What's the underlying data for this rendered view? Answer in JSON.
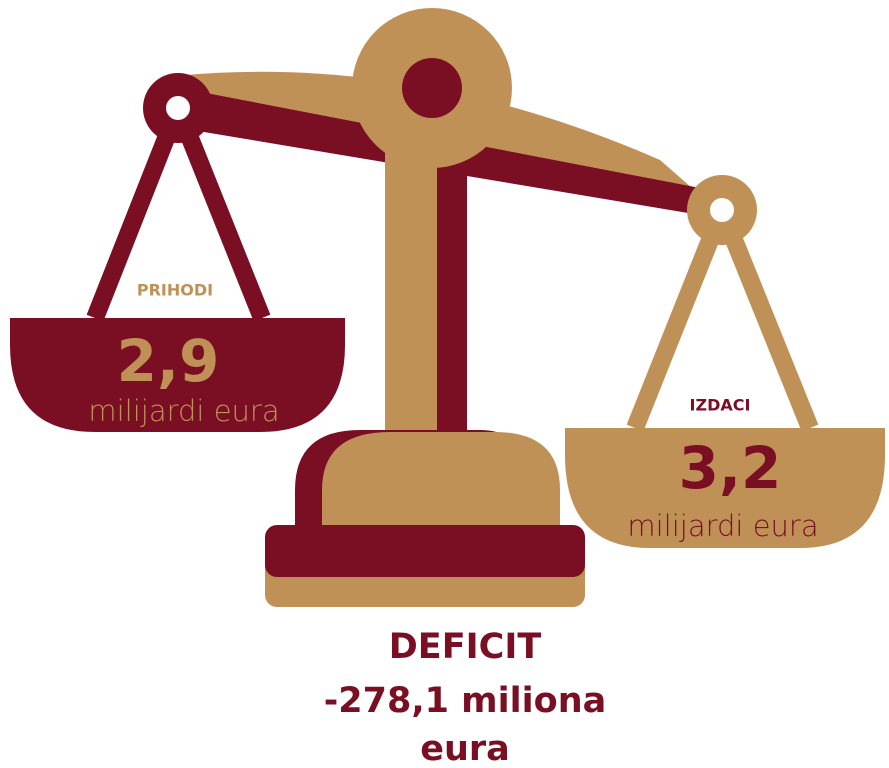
{
  "left_pan": {
    "label": "PRIHODI",
    "amount": "2,9",
    "unit": "milijardi eura"
  },
  "right_pan": {
    "label": "IZDACI",
    "amount": "3,2",
    "unit": "milijardi eura"
  },
  "deficit": {
    "title": "DEFICIT",
    "lines": [
      "-278,1 miliona",
      "eura"
    ]
  }
}
